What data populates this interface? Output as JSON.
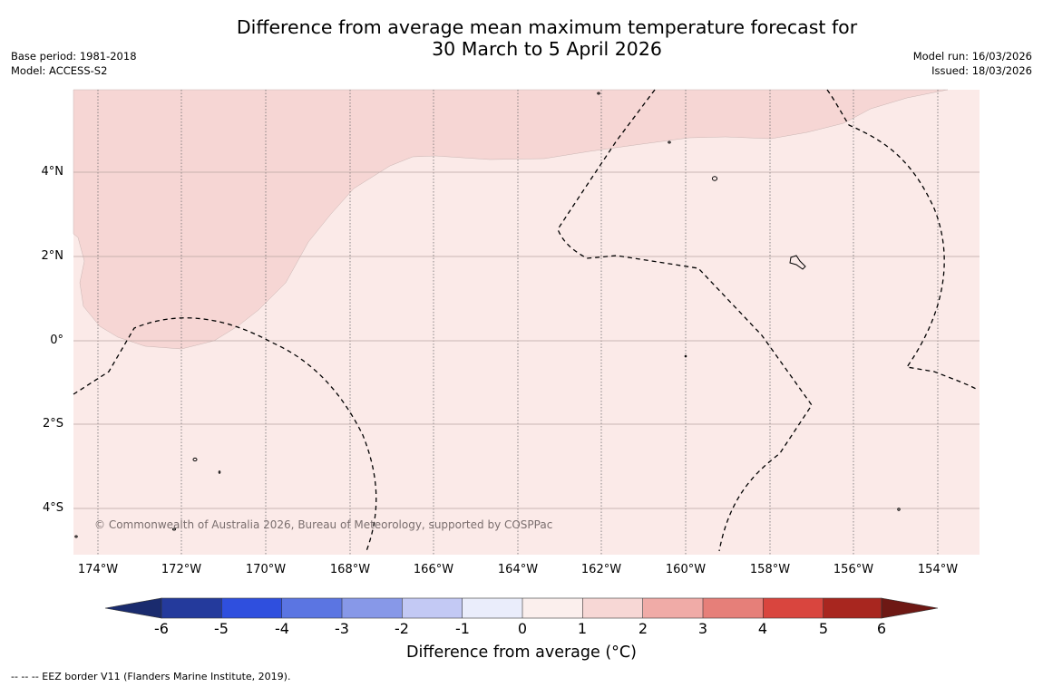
{
  "title": {
    "line1": "Difference from average mean maximum temperature forecast for",
    "line2": "30 March to 5 April 2026"
  },
  "meta_left": {
    "base_period": "Base period: 1981-2018",
    "model": "Model: ACCESS-S2"
  },
  "meta_right": {
    "model_run": "Model run: 16/03/2026",
    "issued": "Issued: 18/03/2026"
  },
  "map": {
    "lat_labels": [
      "4°N",
      "2°N",
      "0°",
      "2°S",
      "4°S"
    ],
    "lon_labels": [
      "174°W",
      "172°W",
      "170°W",
      "168°W",
      "166°W",
      "164°W",
      "162°W",
      "160°W",
      "158°W",
      "156°W",
      "154°W"
    ],
    "regions": [
      {
        "category": "1 to 2",
        "color": "#f6d6d4"
      },
      {
        "category": "0 to 1",
        "color": "#fbeae8"
      }
    ],
    "copyright": "© Commonwealth of Australia 2026, Bureau of Meteorology, supported by COSPPac"
  },
  "colorbar": {
    "ticks": [
      "-6",
      "-5",
      "-4",
      "-3",
      "-2",
      "-1",
      "0",
      "1",
      "2",
      "3",
      "4",
      "5",
      "6"
    ],
    "colors": [
      "#243a9c",
      "#2f4fde",
      "#5b75e2",
      "#8798e8",
      "#c3c9f4",
      "#eaedfb",
      "#fbefed",
      "#f7d7d5",
      "#f0aba7",
      "#e67f79",
      "#d9453e",
      "#a8261f"
    ],
    "under_color": "#1a2b6e",
    "over_color": "#6e1814",
    "label": "Difference from average (°C)"
  },
  "footnote": "--  --  -- EEZ border V11 (Flanders Marine Institute, 2019)."
}
